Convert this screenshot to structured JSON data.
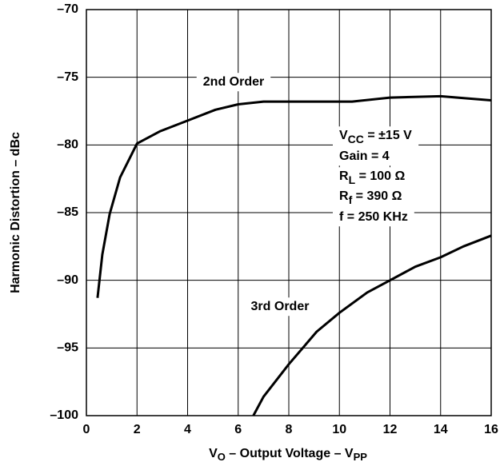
{
  "chart_data": {
    "type": "line",
    "xlabel": {
      "main": "V",
      "sub": "O",
      "rest": " – Output Voltage – V",
      "sub2": "PP"
    },
    "ylabel": "Harmonic Distortion – dBc",
    "xlim": [
      0,
      16
    ],
    "ylim": [
      -100,
      -70
    ],
    "xticks": [
      0,
      2,
      4,
      6,
      8,
      10,
      12,
      14,
      16
    ],
    "yticks": [
      {
        "value": -100,
        "label": "–100"
      },
      {
        "value": -95,
        "label": "–95"
      },
      {
        "value": -90,
        "label": "–90"
      },
      {
        "value": -85,
        "label": "–85"
      },
      {
        "value": -80,
        "label": "–80"
      },
      {
        "value": -75,
        "label": "–75"
      },
      {
        "value": -70,
        "label": "–70"
      }
    ],
    "grid": true,
    "series": [
      {
        "name": "2nd Order",
        "color": "#000000",
        "x": [
          0.44,
          0.63,
          0.92,
          1.33,
          2.0,
          2.9,
          4.0,
          5.1,
          6.0,
          7.0,
          9.2,
          10.5,
          12.0,
          14.0,
          15.3,
          16.0
        ],
        "values": [
          -91.3,
          -88.1,
          -85.1,
          -82.4,
          -79.9,
          -79.0,
          -78.2,
          -77.4,
          -77.0,
          -76.8,
          -76.8,
          -76.8,
          -76.5,
          -76.4,
          -76.6,
          -76.7
        ]
      },
      {
        "name": "3rd Order",
        "color": "#000000",
        "x": [
          6.6,
          7.0,
          8.0,
          9.1,
          10.0,
          11.1,
          12.0,
          13.0,
          14.0,
          14.9,
          16.0
        ],
        "values": [
          -100,
          -98.6,
          -96.2,
          -93.8,
          -92.4,
          -90.9,
          -90.0,
          -89.0,
          -88.3,
          -87.5,
          -86.7
        ]
      }
    ],
    "conditions": [
      {
        "main": "V",
        "sub": "CC",
        "rest": " = ±15 V"
      },
      {
        "main": "Gain = 4"
      },
      {
        "main": "R",
        "sub": "L",
        "rest": " = 100 Ω"
      },
      {
        "main": "R",
        "sub": "f",
        "rest": " = 390 Ω"
      },
      {
        "main": "f = 250 KHz"
      }
    ]
  }
}
